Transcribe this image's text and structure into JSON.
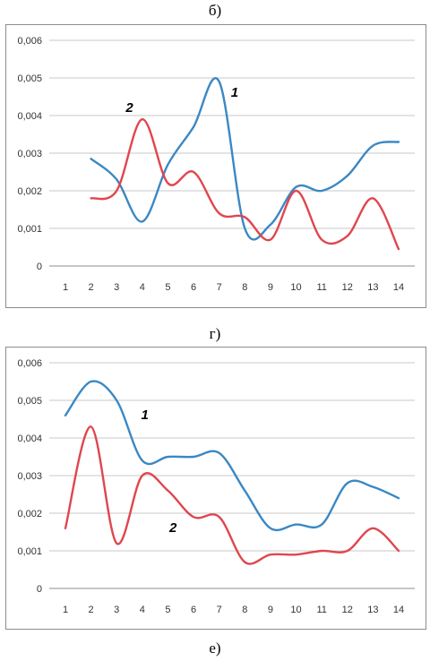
{
  "captions": [
    "б)",
    "г)",
    "е)"
  ],
  "colors": {
    "series1": "#3a88c4",
    "series2": "#e0464e",
    "grid": "#c8c8c8",
    "axis": "#8c8c8c"
  },
  "chart_data": [
    {
      "type": "line",
      "title": "",
      "xlabel": "",
      "ylabel": "",
      "x": [
        1,
        2,
        3,
        4,
        5,
        6,
        7,
        8,
        9,
        10,
        11,
        12,
        13,
        14
      ],
      "ylim": [
        0,
        0.006
      ],
      "yticks": [
        "0",
        "0,001",
        "0,002",
        "0,003",
        "0,004",
        "0,005",
        "0,006"
      ],
      "xticks": [
        "1",
        "2",
        "3",
        "4",
        "5",
        "6",
        "7",
        "8",
        "9",
        "10",
        "11",
        "12",
        "13",
        "14"
      ],
      "grid": true,
      "series": [
        {
          "name": "1",
          "x": [
            2,
            3,
            4,
            5,
            6,
            7,
            8,
            9,
            10,
            11,
            12,
            13,
            14
          ],
          "values": [
            0.00285,
            0.0023,
            0.00118,
            0.0027,
            0.0037,
            0.0049,
            0.001,
            0.0011,
            0.0021,
            0.002,
            0.0024,
            0.0032,
            0.0033
          ]
        },
        {
          "name": "2",
          "x": [
            2,
            3,
            4,
            5,
            6,
            7,
            8,
            9,
            10,
            11,
            12,
            13,
            14
          ],
          "values": [
            0.0018,
            0.002,
            0.0039,
            0.0022,
            0.0025,
            0.0014,
            0.0013,
            0.0007,
            0.002,
            0.0007,
            0.0008,
            0.0018,
            0.00045
          ]
        }
      ],
      "labels": [
        {
          "text": "1",
          "x": 7.6,
          "y": 0.0045
        },
        {
          "text": "2",
          "x": 3.5,
          "y": 0.0041
        }
      ]
    },
    {
      "type": "line",
      "title": "",
      "xlabel": "",
      "ylabel": "",
      "x": [
        1,
        2,
        3,
        4,
        5,
        6,
        7,
        8,
        9,
        10,
        11,
        12,
        13,
        14
      ],
      "ylim": [
        0,
        0.006
      ],
      "yticks": [
        "0",
        "0,001",
        "0,002",
        "0,003",
        "0,004",
        "0,005",
        "0,006"
      ],
      "xticks": [
        "1",
        "2",
        "3",
        "4",
        "5",
        "6",
        "7",
        "8",
        "9",
        "10",
        "11",
        "12",
        "13",
        "14"
      ],
      "grid": true,
      "series": [
        {
          "name": "1",
          "x": [
            1,
            2,
            3,
            4,
            5,
            6,
            7,
            8,
            9,
            10,
            11,
            12,
            13,
            14
          ],
          "values": [
            0.0046,
            0.0055,
            0.005,
            0.0034,
            0.0035,
            0.0035,
            0.0036,
            0.0026,
            0.0016,
            0.0017,
            0.0017,
            0.0028,
            0.0027,
            0.0024
          ]
        },
        {
          "name": "2",
          "x": [
            1,
            2,
            3,
            4,
            5,
            6,
            7,
            8,
            9,
            10,
            11,
            12,
            13,
            14
          ],
          "values": [
            0.0016,
            0.0043,
            0.0012,
            0.003,
            0.0026,
            0.0019,
            0.0019,
            0.0007,
            0.0009,
            0.0009,
            0.001,
            0.001,
            0.0016,
            0.001
          ]
        }
      ],
      "labels": [
        {
          "text": "1",
          "x": 4.1,
          "y": 0.0045
        },
        {
          "text": "2",
          "x": 5.2,
          "y": 0.0015
        }
      ]
    }
  ]
}
